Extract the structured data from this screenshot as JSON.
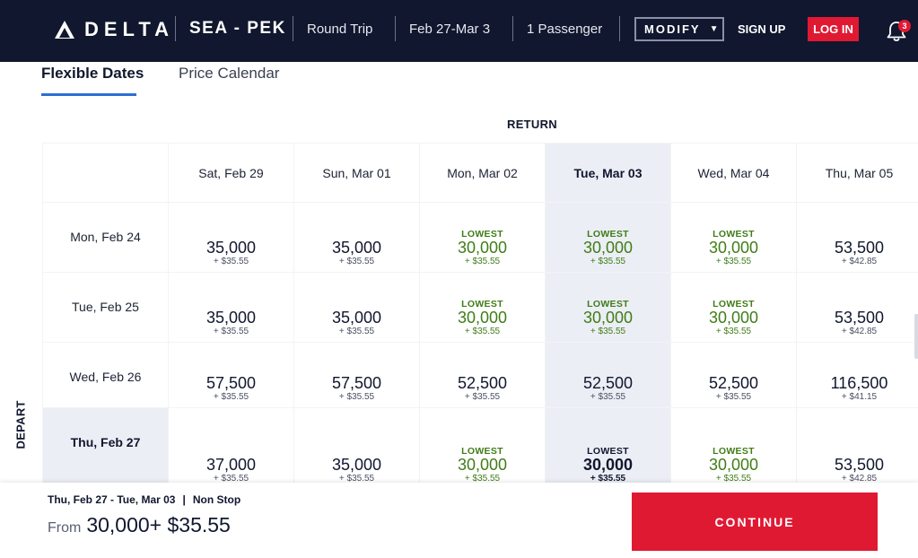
{
  "header": {
    "brand": "DELTA",
    "route": "SEA - PEK",
    "trip_type": "Round Trip",
    "dates": "Feb 27-Mar 3",
    "passengers": "1 Passenger",
    "modify_label": "MODIFY",
    "signup_label": "SIGN UP",
    "login_label": "LOG IN",
    "notification_count": "3"
  },
  "tabs": [
    {
      "label": "Flexible Dates",
      "active": true
    },
    {
      "label": "Price Calendar",
      "active": false
    }
  ],
  "grid": {
    "return_label": "RETURN",
    "depart_label": "DEPART",
    "columns": [
      "Sat, Feb 29",
      "Sun, Mar 01",
      "Mon, Mar 02",
      "Tue, Mar 03",
      "Wed, Mar 04",
      "Thu, Mar 05"
    ],
    "selected_column": 3,
    "selected_row": 3,
    "rows": [
      {
        "label": "Mon, Feb 24",
        "cells": [
          {
            "lowest": "",
            "miles": "35,000",
            "tax": "+ $35.55"
          },
          {
            "lowest": "",
            "miles": "35,000",
            "tax": "+ $35.55"
          },
          {
            "lowest": "LOWEST",
            "miles": "30,000",
            "tax": "+ $35.55"
          },
          {
            "lowest": "LOWEST",
            "miles": "30,000",
            "tax": "+ $35.55"
          },
          {
            "lowest": "LOWEST",
            "miles": "30,000",
            "tax": "+ $35.55"
          },
          {
            "lowest": "",
            "miles": "53,500",
            "tax": "+ $42.85"
          }
        ]
      },
      {
        "label": "Tue, Feb 25",
        "cells": [
          {
            "lowest": "",
            "miles": "35,000",
            "tax": "+ $35.55"
          },
          {
            "lowest": "",
            "miles": "35,000",
            "tax": "+ $35.55"
          },
          {
            "lowest": "LOWEST",
            "miles": "30,000",
            "tax": "+ $35.55"
          },
          {
            "lowest": "LOWEST",
            "miles": "30,000",
            "tax": "+ $35.55"
          },
          {
            "lowest": "LOWEST",
            "miles": "30,000",
            "tax": "+ $35.55"
          },
          {
            "lowest": "",
            "miles": "53,500",
            "tax": "+ $42.85"
          }
        ]
      },
      {
        "label": "Wed, Feb 26",
        "cells": [
          {
            "lowest": "",
            "miles": "57,500",
            "tax": "+ $35.55"
          },
          {
            "lowest": "",
            "miles": "57,500",
            "tax": "+ $35.55"
          },
          {
            "lowest": "",
            "miles": "52,500",
            "tax": "+ $35.55"
          },
          {
            "lowest": "",
            "miles": "52,500",
            "tax": "+ $35.55"
          },
          {
            "lowest": "",
            "miles": "52,500",
            "tax": "+ $35.55"
          },
          {
            "lowest": "",
            "miles": "116,500",
            "tax": "+ $41.15"
          }
        ]
      },
      {
        "label": "Thu, Feb 27",
        "cells": [
          {
            "lowest": "",
            "miles": "37,000",
            "tax": "+ $35.55"
          },
          {
            "lowest": "",
            "miles": "35,000",
            "tax": "+ $35.55"
          },
          {
            "lowest": "LOWEST",
            "miles": "30,000",
            "tax": "+ $35.55"
          },
          {
            "lowest": "LOWEST",
            "miles": "30,000",
            "tax": "+ $35.55"
          },
          {
            "lowest": "LOWEST",
            "miles": "30,000",
            "tax": "+ $35.55"
          },
          {
            "lowest": "",
            "miles": "53,500",
            "tax": "+ $42.85"
          }
        ]
      }
    ]
  },
  "footer": {
    "summary_dates": "Thu, Feb 27  - Tue, Mar 03",
    "summary_separator": "|",
    "summary_stops": "Non Stop",
    "from_label": "From",
    "from_value": "30,000+ $35.55",
    "continue_label": "CONTINUE"
  },
  "colors": {
    "navy": "#10172e",
    "red": "#e01933",
    "green": "#3f7d17",
    "highlight": "#eceef5",
    "tab_underline": "#2d6ed3"
  }
}
